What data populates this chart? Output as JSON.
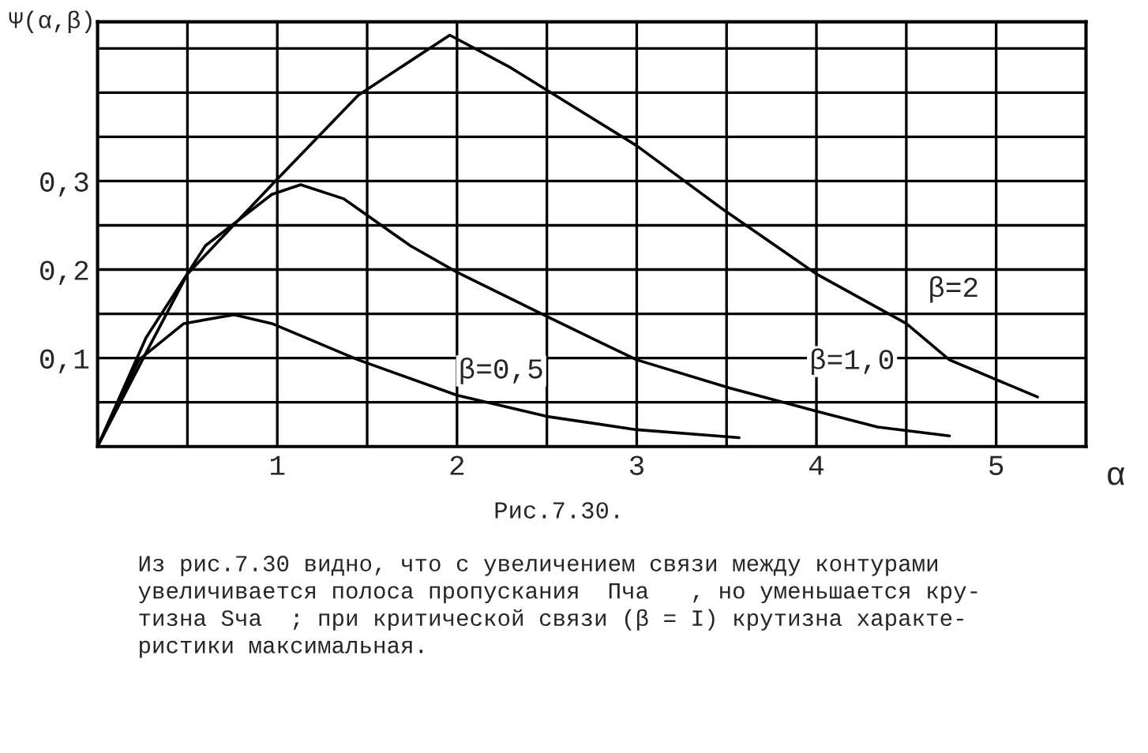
{
  "chart_data": {
    "type": "line",
    "ylabel": "Ψ(α,β)",
    "xlabel": "α",
    "xlim": [
      0,
      5.5
    ],
    "ylim": [
      0,
      0.48
    ],
    "xticks": [
      {
        "value": 0.5,
        "label": null
      },
      1,
      {
        "value": 1.5,
        "label": null
      },
      2,
      {
        "value": 2.5,
        "label": null
      },
      3,
      {
        "value": 3.5,
        "label": null
      },
      4,
      {
        "value": 4.5,
        "label": null
      },
      5
    ],
    "yticks": [
      {
        "value": 0.05,
        "label": null
      },
      {
        "value": 0.1,
        "label": "0,1"
      },
      {
        "value": 0.15,
        "label": null
      },
      {
        "value": 0.2,
        "label": "0,2"
      },
      {
        "value": 0.25,
        "label": null
      },
      {
        "value": 0.3,
        "label": "0,3"
      },
      {
        "value": 0.35,
        "label": null
      },
      {
        "value": 0.4,
        "label": null
      },
      {
        "value": 0.45,
        "label": null
      }
    ],
    "grid": true,
    "marker": "none",
    "line_style": "solid",
    "series": [
      {
        "name": "β=0,5",
        "color": "#000000",
        "x": [
          0,
          0.23,
          0.48,
          0.76,
          0.97,
          1.45,
          2.0,
          2.5,
          3.0,
          3.57
        ],
        "values": [
          0,
          0.098,
          0.139,
          0.149,
          0.139,
          0.098,
          0.058,
          0.034,
          0.019,
          0.01
        ]
      },
      {
        "name": "β=1,0",
        "color": "#000000",
        "x": [
          0,
          0.27,
          0.6,
          0.97,
          1.13,
          1.37,
          1.74,
          2.0,
          2.5,
          3.0,
          3.52,
          4.0,
          4.34,
          4.74
        ],
        "values": [
          0,
          0.123,
          0.227,
          0.285,
          0.296,
          0.28,
          0.227,
          0.197,
          0.147,
          0.098,
          0.066,
          0.04,
          0.022,
          0.012
        ]
      },
      {
        "name": "β=2",
        "color": "#000000",
        "x": [
          0,
          0.27,
          0.5,
          0.97,
          1.45,
          1.96,
          2.3,
          3.0,
          3.48,
          4.0,
          4.5,
          4.74,
          5.23
        ],
        "values": [
          0,
          0.106,
          0.195,
          0.296,
          0.397,
          0.465,
          0.428,
          0.34,
          0.268,
          0.195,
          0.139,
          0.098,
          0.056
        ]
      }
    ],
    "annotations": [
      "Рис.7.30.",
      "Из рис.7.30 видно, что с увеличением связи между контурами\nувеличивается полоса пропускания  Пча   , но уменьшается кру-\nтизна Sча  ; при критической связи (β = I) крутизна характе-\nристики максимальная."
    ]
  }
}
